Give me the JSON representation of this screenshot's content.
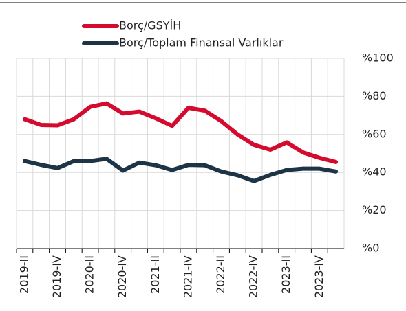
{
  "chart_data": {
    "type": "line",
    "categories": [
      "2019-II",
      null,
      "2019-IV",
      null,
      "2020-II",
      null,
      "2020-IV",
      null,
      "2021-II",
      null,
      "2021-IV",
      null,
      "2022-II",
      null,
      "2022-IV",
      null,
      "2023-II",
      null,
      "2023-IV",
      null
    ],
    "series": [
      {
        "name": "Borç/GSYİH",
        "color": "#d50a2f",
        "values": [
          68,
          65,
          64.8,
          68,
          74.5,
          76.3,
          71,
          72,
          68.5,
          64.5,
          74,
          72.5,
          67,
          60,
          54.5,
          52,
          55.8,
          50.5,
          47.7,
          45.5
        ]
      },
      {
        "name": "Borç/Toplam Finansal Varlıklar",
        "color": "#1d3446",
        "values": [
          46,
          44,
          42.3,
          46,
          46,
          47.2,
          41,
          45.2,
          43.8,
          41.3,
          44,
          43.8,
          40.5,
          38.5,
          35.5,
          38.7,
          41.3,
          42,
          42,
          40.5
        ]
      }
    ],
    "ylim": [
      0,
      100
    ],
    "yticks": [
      {
        "value": 0,
        "label": "%0"
      },
      {
        "value": 20,
        "label": "%20"
      },
      {
        "value": 40,
        "label": "%40"
      },
      {
        "value": 60,
        "label": "%60"
      },
      {
        "value": 80,
        "label": "%80"
      },
      {
        "value": 100,
        "label": "%100"
      }
    ],
    "grid": true
  }
}
